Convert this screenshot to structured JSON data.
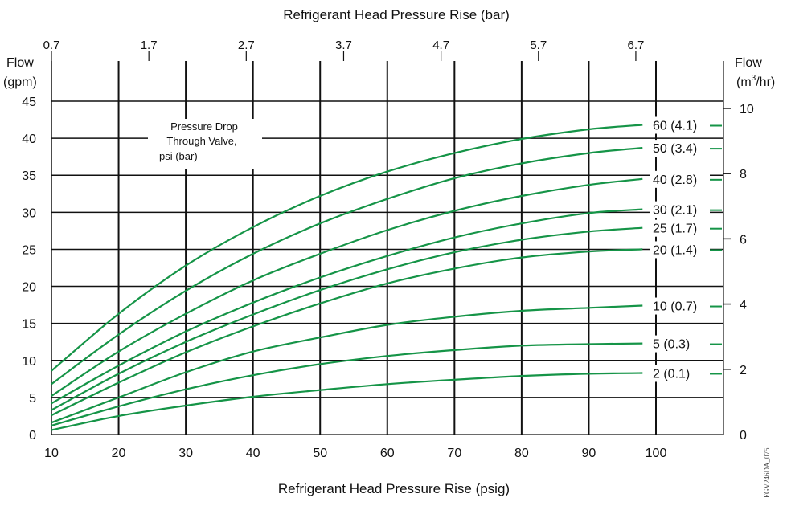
{
  "chart_data": {
    "type": "line",
    "title": "Refrigerant Head Pressure Rise (bar)",
    "xlabel": "Refrigerant Head Pressure Rise (psig)",
    "ylabel_left": [
      "Flow",
      "(gpm)"
    ],
    "ylabel_right": [
      "Flow",
      "(m",
      "3",
      "/hr)"
    ],
    "legend_title": [
      "Pressure Drop",
      "Through Valve,",
      "psi (bar)"
    ],
    "figure_id": "FGV246DA_075",
    "grid": true,
    "xlim": [
      10,
      100
    ],
    "ylim": [
      0,
      45
    ],
    "x_ticks": [
      10,
      20,
      30,
      40,
      50,
      60,
      70,
      80,
      90,
      100
    ],
    "y_ticks": [
      0,
      5,
      10,
      15,
      20,
      25,
      30,
      35,
      40,
      45
    ],
    "x2_ticks": [
      "0.7",
      "1.7",
      "2.7",
      "3.7",
      "4.7",
      "5.7",
      "6.7"
    ],
    "y2_ticks": [
      "0",
      "2",
      "4",
      "6",
      "8",
      "10"
    ],
    "line_color": "#159447",
    "x": [
      10,
      20,
      30,
      40,
      50,
      60,
      70,
      80,
      90,
      98
    ],
    "series": [
      {
        "name": "60 (4.1)",
        "values": [
          8.6,
          16.3,
          22.8,
          28.0,
          32.2,
          35.5,
          38.0,
          39.9,
          41.2,
          41.8
        ]
      },
      {
        "name": "50 (3.4)",
        "values": [
          6.8,
          13.5,
          19.4,
          24.4,
          28.5,
          31.8,
          34.6,
          36.6,
          38.0,
          38.7
        ]
      },
      {
        "name": "40 (2.8)",
        "values": [
          5.2,
          11.2,
          16.3,
          20.8,
          24.4,
          27.6,
          30.2,
          32.2,
          33.7,
          34.5
        ]
      },
      {
        "name": "30 (2.1)",
        "values": [
          4.2,
          9.3,
          13.9,
          17.8,
          21.2,
          24.1,
          26.6,
          28.5,
          29.9,
          30.4
        ]
      },
      {
        "name": "25 (1.7)",
        "values": [
          3.3,
          8.2,
          12.5,
          16.2,
          19.5,
          22.3,
          24.6,
          26.3,
          27.4,
          27.9
        ]
      },
      {
        "name": "20 (1.4)",
        "values": [
          2.6,
          7.0,
          11.1,
          14.6,
          17.7,
          20.4,
          22.4,
          23.9,
          24.7,
          25.0
        ]
      },
      {
        "name": "10 (0.7)",
        "values": [
          1.6,
          5.0,
          8.4,
          11.2,
          13.1,
          14.8,
          15.9,
          16.7,
          17.1,
          17.4
        ]
      },
      {
        "name": "5 (0.3)",
        "values": [
          1.2,
          3.8,
          6.1,
          8.0,
          9.5,
          10.6,
          11.4,
          12.0,
          12.2,
          12.3
        ]
      },
      {
        "name": "2 (0.1)",
        "values": [
          0.6,
          2.5,
          3.9,
          5.1,
          6.0,
          6.8,
          7.4,
          7.9,
          8.2,
          8.3
        ]
      }
    ]
  }
}
